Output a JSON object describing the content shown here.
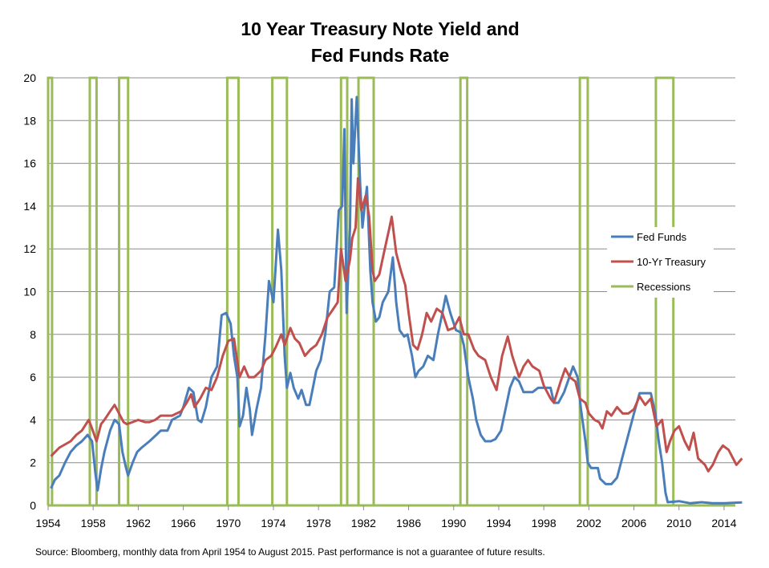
{
  "chart_data": {
    "type": "line",
    "title_lines": [
      "10 Year Treasury Note Yield and",
      "Fed Funds Rate"
    ],
    "source_note": "Source: Bloomberg, monthly data from April 1954 to August 2015. Past performance is not a guarantee of future results.",
    "xlim": [
      1954,
      2015
    ],
    "ylim": [
      0,
      20
    ],
    "x_ticks": [
      1954,
      1958,
      1962,
      1966,
      1970,
      1974,
      1978,
      1982,
      1986,
      1990,
      1994,
      1998,
      2002,
      2006,
      2010,
      2014
    ],
    "y_ticks": [
      0,
      2,
      4,
      6,
      8,
      10,
      12,
      14,
      16,
      18,
      20
    ],
    "grid": "horizontal",
    "legend_position": "right",
    "series": [
      {
        "name": "Fed Funds",
        "color": "#4a7ebb",
        "points": [
          [
            1954.25,
            0.8
          ],
          [
            1954.6,
            1.2
          ],
          [
            1955.0,
            1.4
          ],
          [
            1955.5,
            2.0
          ],
          [
            1956.0,
            2.5
          ],
          [
            1956.5,
            2.8
          ],
          [
            1957.0,
            3.0
          ],
          [
            1957.5,
            3.3
          ],
          [
            1957.9,
            3.0
          ],
          [
            1958.2,
            1.5
          ],
          [
            1958.4,
            0.7
          ],
          [
            1958.7,
            1.7
          ],
          [
            1959.0,
            2.5
          ],
          [
            1959.5,
            3.5
          ],
          [
            1959.9,
            4.0
          ],
          [
            1960.3,
            3.8
          ],
          [
            1960.6,
            2.5
          ],
          [
            1960.9,
            1.8
          ],
          [
            1961.1,
            1.4
          ],
          [
            1961.5,
            2.0
          ],
          [
            1961.9,
            2.5
          ],
          [
            1962.3,
            2.7
          ],
          [
            1963.0,
            3.0
          ],
          [
            1963.6,
            3.3
          ],
          [
            1964.0,
            3.5
          ],
          [
            1964.6,
            3.5
          ],
          [
            1965.0,
            4.0
          ],
          [
            1965.7,
            4.2
          ],
          [
            1966.0,
            4.6
          ],
          [
            1966.5,
            5.5
          ],
          [
            1966.9,
            5.3
          ],
          [
            1967.3,
            4.0
          ],
          [
            1967.6,
            3.9
          ],
          [
            1968.0,
            4.6
          ],
          [
            1968.5,
            6.0
          ],
          [
            1969.0,
            6.5
          ],
          [
            1969.4,
            8.9
          ],
          [
            1969.8,
            9.0
          ],
          [
            1970.2,
            8.5
          ],
          [
            1970.5,
            7.0
          ],
          [
            1970.8,
            6.0
          ],
          [
            1971.0,
            3.7
          ],
          [
            1971.3,
            4.2
          ],
          [
            1971.6,
            5.5
          ],
          [
            1971.9,
            4.5
          ],
          [
            1972.1,
            3.3
          ],
          [
            1972.5,
            4.5
          ],
          [
            1972.9,
            5.5
          ],
          [
            1973.3,
            8.0
          ],
          [
            1973.6,
            10.5
          ],
          [
            1974.0,
            9.5
          ],
          [
            1974.4,
            12.9
          ],
          [
            1974.7,
            11.0
          ],
          [
            1975.0,
            7.0
          ],
          [
            1975.2,
            5.5
          ],
          [
            1975.5,
            6.2
          ],
          [
            1975.8,
            5.5
          ],
          [
            1976.2,
            5.0
          ],
          [
            1976.5,
            5.4
          ],
          [
            1976.9,
            4.7
          ],
          [
            1977.2,
            4.7
          ],
          [
            1977.5,
            5.5
          ],
          [
            1977.8,
            6.3
          ],
          [
            1978.2,
            6.8
          ],
          [
            1978.6,
            8.0
          ],
          [
            1979.0,
            10.0
          ],
          [
            1979.4,
            10.2
          ],
          [
            1979.8,
            13.8
          ],
          [
            1980.1,
            14.0
          ],
          [
            1980.3,
            17.6
          ],
          [
            1980.5,
            9.0
          ],
          [
            1980.8,
            13.0
          ],
          [
            1980.95,
            19.0
          ],
          [
            1981.1,
            16.0
          ],
          [
            1981.4,
            19.1
          ],
          [
            1981.7,
            15.0
          ],
          [
            1981.9,
            13.0
          ],
          [
            1982.1,
            14.0
          ],
          [
            1982.3,
            14.9
          ],
          [
            1982.6,
            11.0
          ],
          [
            1982.8,
            9.5
          ],
          [
            1983.1,
            8.6
          ],
          [
            1983.4,
            8.8
          ],
          [
            1983.7,
            9.5
          ],
          [
            1984.2,
            10.0
          ],
          [
            1984.6,
            11.6
          ],
          [
            1984.9,
            9.5
          ],
          [
            1985.2,
            8.2
          ],
          [
            1985.6,
            7.9
          ],
          [
            1985.9,
            8.0
          ],
          [
            1986.3,
            7.0
          ],
          [
            1986.6,
            6.0
          ],
          [
            1986.9,
            6.3
          ],
          [
            1987.3,
            6.5
          ],
          [
            1987.7,
            7.0
          ],
          [
            1988.2,
            6.8
          ],
          [
            1988.6,
            8.0
          ],
          [
            1989.0,
            9.0
          ],
          [
            1989.3,
            9.8
          ],
          [
            1989.7,
            9.0
          ],
          [
            1990.2,
            8.2
          ],
          [
            1990.6,
            8.1
          ],
          [
            1990.9,
            7.5
          ],
          [
            1991.3,
            6.0
          ],
          [
            1991.7,
            5.0
          ],
          [
            1992.0,
            4.0
          ],
          [
            1992.4,
            3.3
          ],
          [
            1992.8,
            3.0
          ],
          [
            1993.3,
            3.0
          ],
          [
            1993.7,
            3.1
          ],
          [
            1994.2,
            3.5
          ],
          [
            1994.6,
            4.5
          ],
          [
            1995.0,
            5.5
          ],
          [
            1995.4,
            6.0
          ],
          [
            1995.8,
            5.8
          ],
          [
            1996.2,
            5.3
          ],
          [
            1996.6,
            5.3
          ],
          [
            1997.0,
            5.3
          ],
          [
            1997.5,
            5.5
          ],
          [
            1998.0,
            5.5
          ],
          [
            1998.6,
            5.5
          ],
          [
            1998.9,
            4.8
          ],
          [
            1999.3,
            4.8
          ],
          [
            1999.8,
            5.3
          ],
          [
            2000.2,
            5.9
          ],
          [
            2000.6,
            6.5
          ],
          [
            2001.0,
            6.0
          ],
          [
            2001.3,
            4.5
          ],
          [
            2001.7,
            3.0
          ],
          [
            2001.9,
            2.0
          ],
          [
            2002.2,
            1.75
          ],
          [
            2002.8,
            1.75
          ],
          [
            2003.0,
            1.25
          ],
          [
            2003.5,
            1.0
          ],
          [
            2004.0,
            1.0
          ],
          [
            2004.5,
            1.3
          ],
          [
            2005.0,
            2.3
          ],
          [
            2005.5,
            3.3
          ],
          [
            2006.0,
            4.3
          ],
          [
            2006.5,
            5.25
          ],
          [
            2007.0,
            5.25
          ],
          [
            2007.5,
            5.25
          ],
          [
            2007.9,
            4.3
          ],
          [
            2008.2,
            3.0
          ],
          [
            2008.5,
            2.0
          ],
          [
            2008.8,
            0.6
          ],
          [
            2009.0,
            0.15
          ],
          [
            2010.0,
            0.2
          ],
          [
            2011.0,
            0.1
          ],
          [
            2012.0,
            0.15
          ],
          [
            2013.0,
            0.1
          ],
          [
            2014.0,
            0.1
          ],
          [
            2015.6,
            0.14
          ]
        ]
      },
      {
        "name": "10-Yr Treasury",
        "color": "#c0504d",
        "points": [
          [
            1954.25,
            2.3
          ],
          [
            1955.0,
            2.7
          ],
          [
            1956.0,
            3.0
          ],
          [
            1956.5,
            3.3
          ],
          [
            1957.0,
            3.5
          ],
          [
            1957.6,
            4.0
          ],
          [
            1957.9,
            3.6
          ],
          [
            1958.3,
            3.0
          ],
          [
            1958.7,
            3.8
          ],
          [
            1959.0,
            4.0
          ],
          [
            1959.5,
            4.4
          ],
          [
            1959.9,
            4.7
          ],
          [
            1960.3,
            4.3
          ],
          [
            1960.7,
            3.9
          ],
          [
            1961.0,
            3.8
          ],
          [
            1961.5,
            3.9
          ],
          [
            1962.0,
            4.0
          ],
          [
            1962.6,
            3.9
          ],
          [
            1963.0,
            3.9
          ],
          [
            1963.5,
            4.0
          ],
          [
            1964.0,
            4.2
          ],
          [
            1965.0,
            4.2
          ],
          [
            1965.8,
            4.4
          ],
          [
            1966.3,
            4.8
          ],
          [
            1966.7,
            5.2
          ],
          [
            1967.0,
            4.6
          ],
          [
            1967.5,
            5.0
          ],
          [
            1968.0,
            5.5
          ],
          [
            1968.5,
            5.4
          ],
          [
            1969.0,
            6.0
          ],
          [
            1969.5,
            7.0
          ],
          [
            1970.0,
            7.7
          ],
          [
            1970.5,
            7.8
          ],
          [
            1971.0,
            6.0
          ],
          [
            1971.4,
            6.5
          ],
          [
            1971.8,
            6.0
          ],
          [
            1972.3,
            6.0
          ],
          [
            1972.9,
            6.3
          ],
          [
            1973.3,
            6.8
          ],
          [
            1973.8,
            7.0
          ],
          [
            1974.2,
            7.4
          ],
          [
            1974.7,
            8.0
          ],
          [
            1975.0,
            7.5
          ],
          [
            1975.5,
            8.3
          ],
          [
            1975.9,
            7.8
          ],
          [
            1976.3,
            7.6
          ],
          [
            1976.8,
            7.0
          ],
          [
            1977.3,
            7.3
          ],
          [
            1977.8,
            7.5
          ],
          [
            1978.3,
            8.0
          ],
          [
            1978.8,
            8.8
          ],
          [
            1979.2,
            9.1
          ],
          [
            1979.7,
            9.5
          ],
          [
            1980.0,
            12.0
          ],
          [
            1980.4,
            10.5
          ],
          [
            1980.8,
            11.5
          ],
          [
            1981.0,
            12.5
          ],
          [
            1981.3,
            13.0
          ],
          [
            1981.5,
            15.3
          ],
          [
            1981.8,
            13.8
          ],
          [
            1982.2,
            14.5
          ],
          [
            1982.5,
            13.5
          ],
          [
            1982.8,
            11.0
          ],
          [
            1983.0,
            10.5
          ],
          [
            1983.4,
            10.8
          ],
          [
            1983.8,
            11.8
          ],
          [
            1984.3,
            13.0
          ],
          [
            1984.5,
            13.5
          ],
          [
            1984.9,
            11.8
          ],
          [
            1985.3,
            11.0
          ],
          [
            1985.7,
            10.3
          ],
          [
            1986.0,
            9.0
          ],
          [
            1986.4,
            7.5
          ],
          [
            1986.8,
            7.3
          ],
          [
            1987.2,
            8.0
          ],
          [
            1987.6,
            9.0
          ],
          [
            1988.0,
            8.6
          ],
          [
            1988.5,
            9.2
          ],
          [
            1989.0,
            9.0
          ],
          [
            1989.5,
            8.2
          ],
          [
            1990.0,
            8.3
          ],
          [
            1990.5,
            8.8
          ],
          [
            1990.9,
            8.0
          ],
          [
            1991.3,
            8.0
          ],
          [
            1991.8,
            7.3
          ],
          [
            1992.2,
            7.0
          ],
          [
            1992.8,
            6.8
          ],
          [
            1993.3,
            6.0
          ],
          [
            1993.8,
            5.4
          ],
          [
            1994.3,
            7.0
          ],
          [
            1994.8,
            7.9
          ],
          [
            1995.2,
            7.0
          ],
          [
            1995.8,
            6.0
          ],
          [
            1996.2,
            6.5
          ],
          [
            1996.6,
            6.8
          ],
          [
            1997.0,
            6.5
          ],
          [
            1997.6,
            6.3
          ],
          [
            1998.0,
            5.6
          ],
          [
            1998.6,
            5.0
          ],
          [
            1998.9,
            4.8
          ],
          [
            1999.5,
            5.8
          ],
          [
            1999.9,
            6.4
          ],
          [
            2000.3,
            6.0
          ],
          [
            2000.8,
            5.8
          ],
          [
            2001.2,
            5.0
          ],
          [
            2001.7,
            4.8
          ],
          [
            2002.0,
            4.3
          ],
          [
            2002.5,
            4.0
          ],
          [
            2002.9,
            3.9
          ],
          [
            2003.2,
            3.6
          ],
          [
            2003.6,
            4.4
          ],
          [
            2004.0,
            4.2
          ],
          [
            2004.5,
            4.6
          ],
          [
            2005.0,
            4.3
          ],
          [
            2005.5,
            4.3
          ],
          [
            2006.0,
            4.5
          ],
          [
            2006.5,
            5.1
          ],
          [
            2007.0,
            4.7
          ],
          [
            2007.5,
            5.0
          ],
          [
            2008.0,
            3.7
          ],
          [
            2008.5,
            4.0
          ],
          [
            2008.9,
            2.5
          ],
          [
            2009.2,
            3.0
          ],
          [
            2009.6,
            3.5
          ],
          [
            2010.0,
            3.7
          ],
          [
            2010.5,
            3.0
          ],
          [
            2010.9,
            2.6
          ],
          [
            2011.3,
            3.4
          ],
          [
            2011.7,
            2.2
          ],
          [
            2012.3,
            1.9
          ],
          [
            2012.6,
            1.6
          ],
          [
            2013.0,
            1.9
          ],
          [
            2013.5,
            2.5
          ],
          [
            2013.9,
            2.8
          ],
          [
            2014.4,
            2.6
          ],
          [
            2014.8,
            2.2
          ],
          [
            2015.1,
            1.9
          ],
          [
            2015.6,
            2.2
          ]
        ]
      },
      {
        "name": "Recessions",
        "color": "#9bbb59",
        "periods": [
          [
            1954.0,
            1954.35
          ],
          [
            1957.7,
            1958.3
          ],
          [
            1960.3,
            1961.1
          ],
          [
            1969.9,
            1970.9
          ],
          [
            1973.9,
            1975.2
          ],
          [
            1980.0,
            1980.55
          ],
          [
            1981.55,
            1982.9
          ],
          [
            1990.6,
            1991.2
          ],
          [
            2001.2,
            2001.9
          ],
          [
            2007.95,
            2009.5
          ]
        ]
      }
    ]
  }
}
